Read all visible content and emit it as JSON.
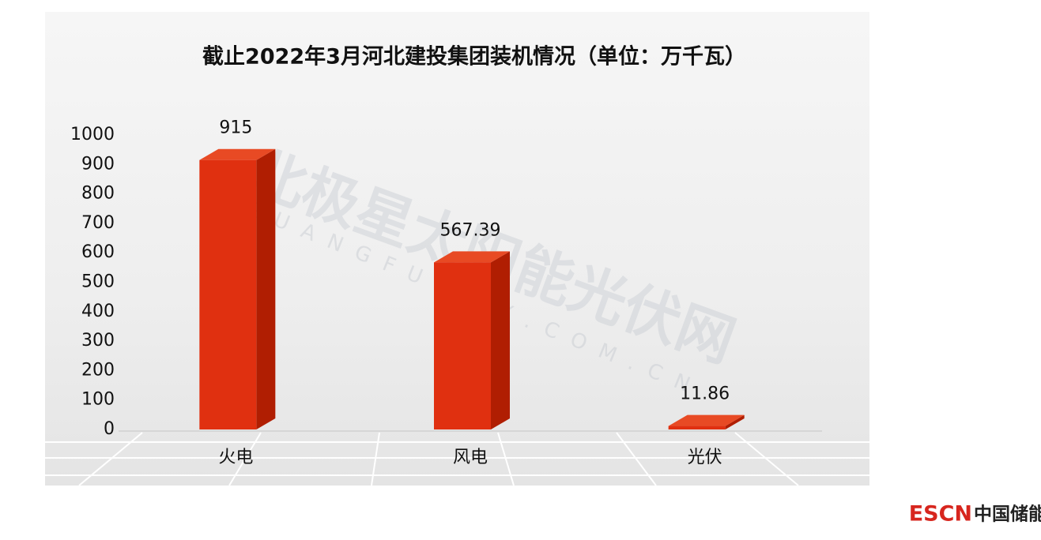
{
  "chart_data": {
    "type": "bar3d",
    "title": "截止2022年3月河北建投集团装机情况（单位：万千瓦）",
    "categories": [
      "火电",
      "风电",
      "光伏"
    ],
    "values": [
      915,
      567.39,
      11.86
    ],
    "color": "#e03010",
    "ylim": [
      0,
      1000
    ],
    "yticks": [
      0,
      100,
      200,
      300,
      400,
      500,
      600,
      700,
      800,
      900,
      1000
    ]
  },
  "watermark": "北极星太阳能光伏网",
  "watermark_url": "GUANGFU.BJX.COM.CN",
  "logo": {
    "brand": "ESCN",
    "name": "中国储能网"
  }
}
